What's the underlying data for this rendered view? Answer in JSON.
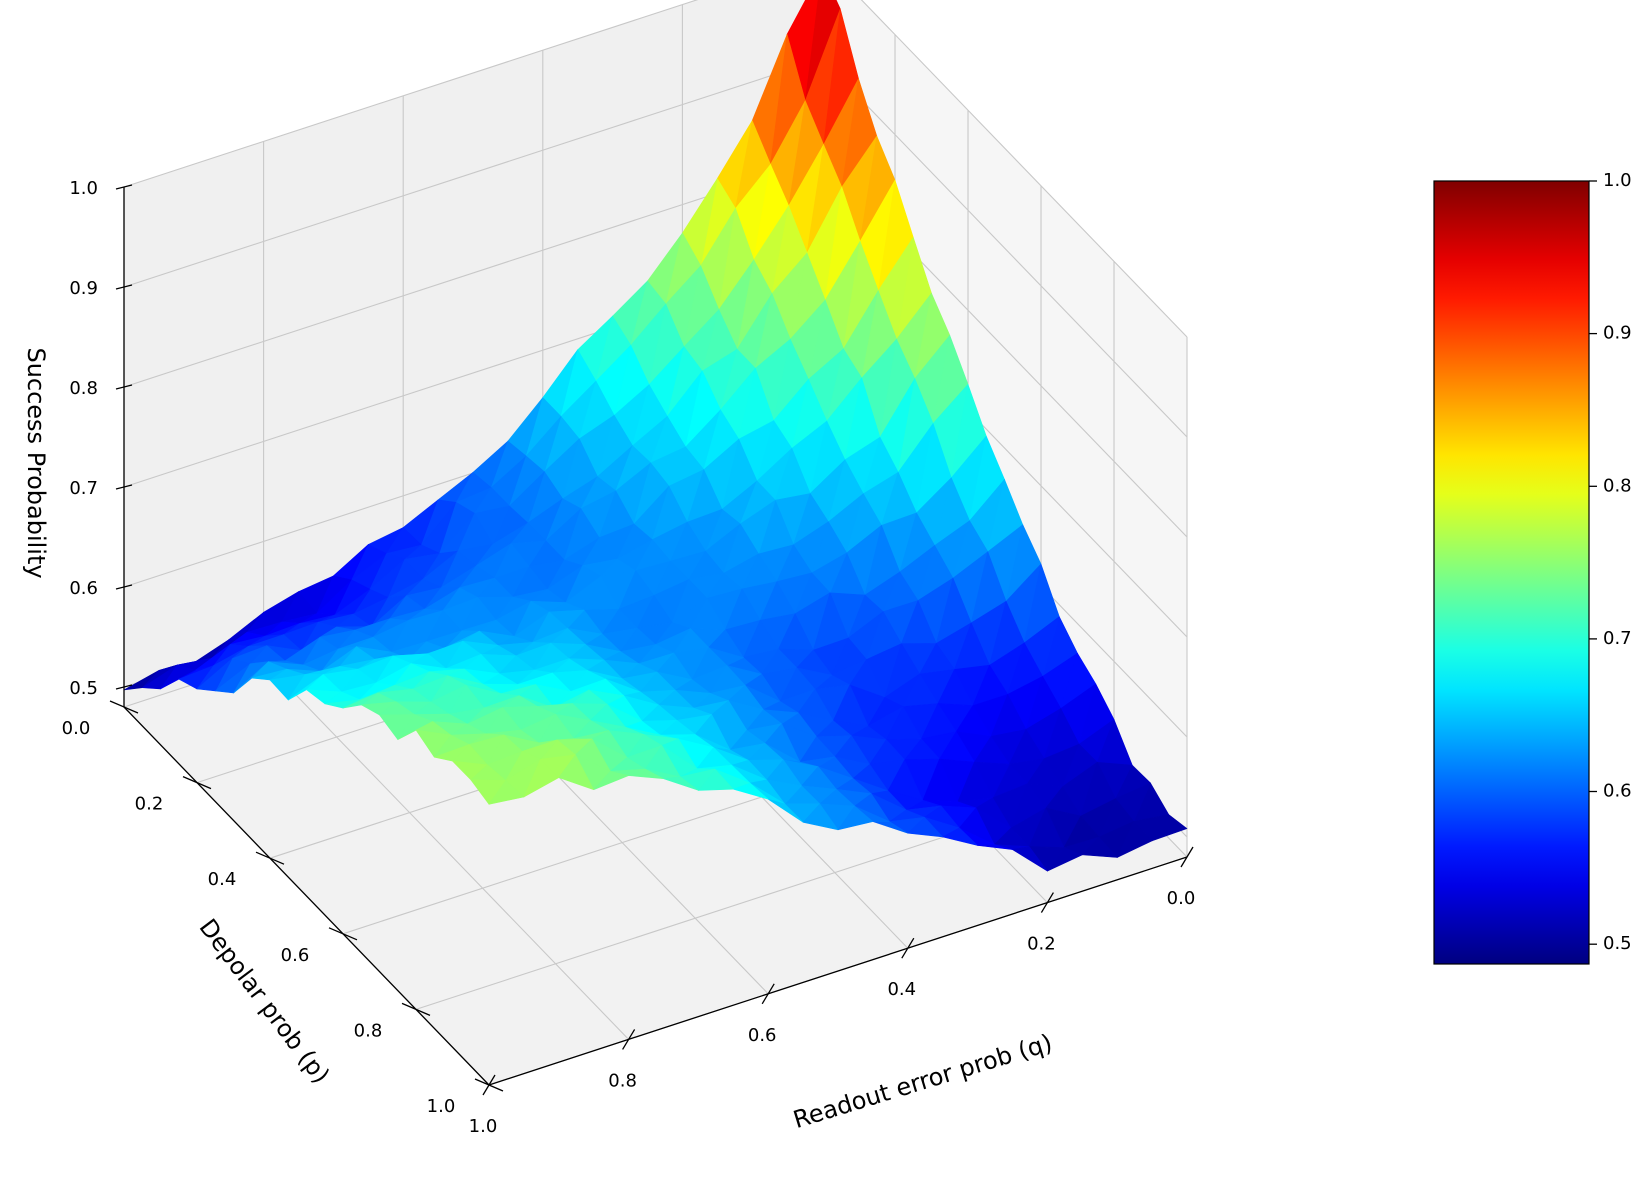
{
  "chart_data": {
    "type": "surface",
    "title": "",
    "colormap": "jet",
    "x_axis": {
      "label": "Readout error prob (q)",
      "ticks": [
        0.0,
        0.2,
        0.4,
        0.6,
        0.8,
        1.0
      ],
      "tick_labels": [
        "0.0",
        "0.2",
        "0.4",
        "0.6",
        "0.8",
        "1.0"
      ],
      "range": [
        0,
        1
      ]
    },
    "y_axis": {
      "label": "Depolar prob (p)",
      "ticks": [
        0.0,
        0.2,
        0.4,
        0.6,
        0.8,
        1.0
      ],
      "tick_labels": [
        "0.0",
        "0.2",
        "0.4",
        "0.6",
        "0.8",
        "1.0"
      ],
      "range": [
        0,
        1
      ]
    },
    "z_axis": {
      "label": "Success Probability",
      "ticks": [
        0.5,
        0.6,
        0.7,
        0.8,
        0.9,
        1.0
      ],
      "tick_labels": [
        "0.5",
        "0.6",
        "0.7",
        "0.8",
        "0.9",
        "1.0"
      ],
      "range": [
        0.48,
        1.0
      ]
    },
    "colorbar": {
      "ticks": [
        0.5,
        0.6,
        0.7,
        0.8,
        0.9,
        1.0
      ],
      "tick_labels": [
        "0.5",
        "0.6",
        "0.7",
        "0.8",
        "0.9",
        "1.0"
      ],
      "range": [
        0.487,
        1.0
      ]
    },
    "grid": true,
    "grid_size": 21,
    "surface_corners": {
      "q0_p0": 1.0,
      "q0_p1": 0.5,
      "q1_p0": 0.5,
      "q1_p1": 0.77
    },
    "surface_profile": {
      "q_values": [
        0.0,
        0.05,
        0.1,
        0.15,
        0.2,
        0.3,
        0.4,
        0.5,
        0.6,
        0.7,
        0.8,
        0.9,
        1.0
      ],
      "success_at_p0": [
        1.0,
        0.93,
        0.87,
        0.82,
        0.78,
        0.71,
        0.65,
        0.61,
        0.57,
        0.54,
        0.52,
        0.51,
        0.5
      ],
      "success_at_p1": [
        0.5,
        0.5,
        0.5,
        0.51,
        0.52,
        0.55,
        0.59,
        0.63,
        0.67,
        0.71,
        0.74,
        0.76,
        0.77
      ]
    },
    "noise_amplitude": 0.01
  }
}
